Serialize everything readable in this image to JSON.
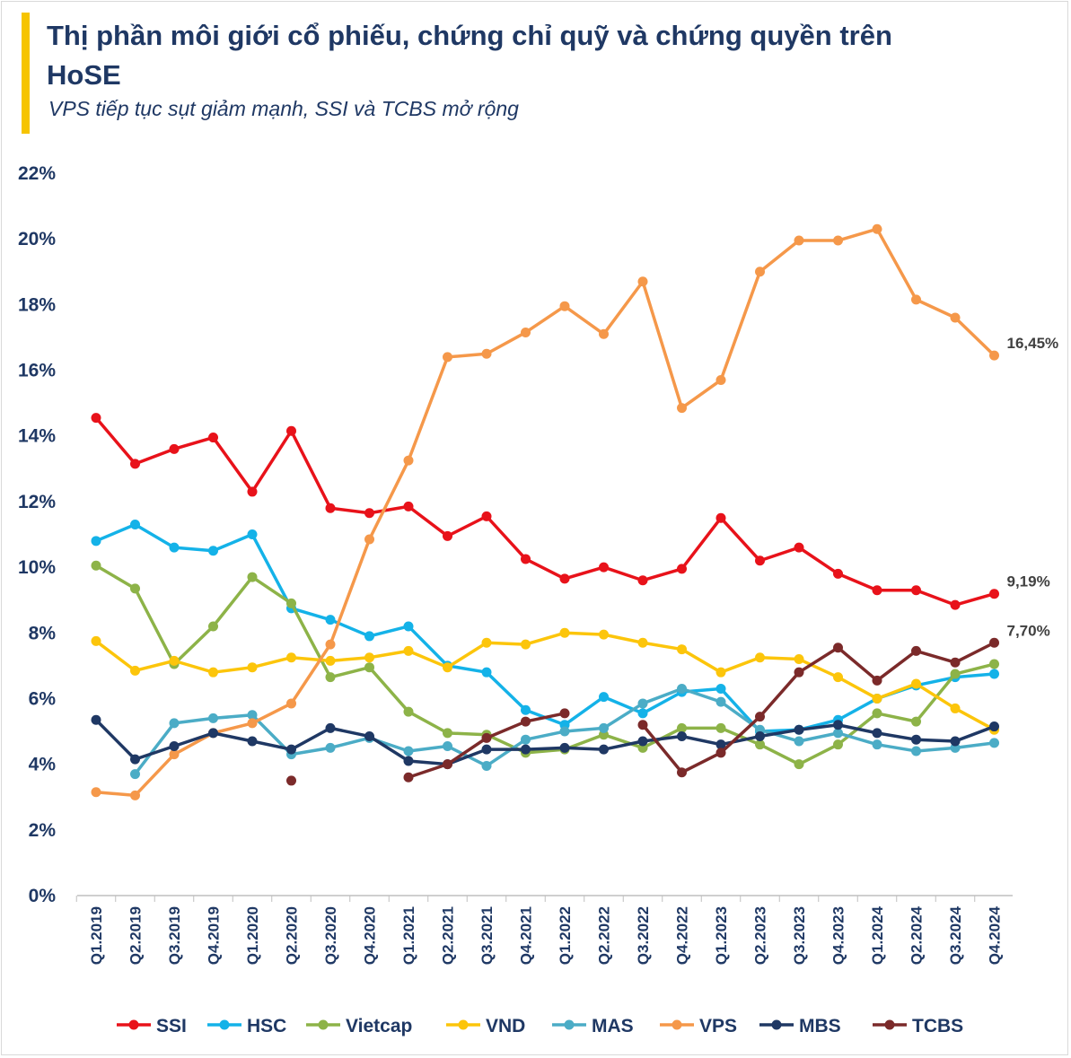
{
  "header": {
    "title": "Thị phần môi giới cổ phiếu, chứng chỉ quỹ và chứng quyền trên HoSE",
    "subtitle": "VPS tiếp tục sụt giảm mạnh, SSI và TCBS mở rộng",
    "accent_color": "#f6c400"
  },
  "chart_data": {
    "type": "line",
    "title": "Thị phần môi giới cổ phiếu, chứng chỉ quỹ và chứng quyền trên HoSE",
    "subtitle": "VPS tiếp tục sụt giảm mạnh, SSI và TCBS mở rộng",
    "xlabel": "",
    "ylabel": "",
    "ylim": [
      0,
      22
    ],
    "y_ticks": [
      "0%",
      "2%",
      "4%",
      "6%",
      "8%",
      "10%",
      "12%",
      "14%",
      "16%",
      "18%",
      "20%",
      "22%"
    ],
    "grid": false,
    "legend_position": "bottom",
    "categories": [
      "Q1.2019",
      "Q2.2019",
      "Q3.2019",
      "Q4.2019",
      "Q1.2020",
      "Q2.2020",
      "Q3.2020",
      "Q4.2020",
      "Q1.2021",
      "Q2.2021",
      "Q3.2021",
      "Q4.2021",
      "Q1.2022",
      "Q2.2022",
      "Q3.2022",
      "Q4.2022",
      "Q1.2023",
      "Q2.2023",
      "Q3.2023",
      "Q4.2023",
      "Q1.2024",
      "Q2.2024",
      "Q3.2024",
      "Q4.2024"
    ],
    "series": [
      {
        "name": "SSI",
        "color": "#e8121a",
        "values": [
          14.55,
          13.15,
          13.6,
          13.95,
          12.3,
          14.15,
          11.8,
          11.65,
          11.85,
          10.95,
          11.55,
          10.25,
          9.65,
          10.0,
          9.6,
          9.95,
          11.5,
          10.2,
          10.6,
          9.8,
          9.3,
          9.3,
          8.85,
          9.19
        ],
        "end_label": "9,19%"
      },
      {
        "name": "HSC",
        "color": "#14b2e8",
        "values": [
          10.8,
          11.3,
          10.6,
          10.5,
          11.0,
          8.75,
          8.4,
          7.9,
          8.2,
          7.0,
          6.8,
          5.65,
          5.2,
          6.05,
          5.55,
          6.2,
          6.3,
          5.0,
          5.05,
          5.35,
          6.0,
          6.4,
          6.65,
          6.75
        ],
        "end_label": ""
      },
      {
        "name": "Vietcap",
        "color": "#8db348",
        "values": [
          10.05,
          9.35,
          7.05,
          8.2,
          9.7,
          8.9,
          6.65,
          6.95,
          5.6,
          4.95,
          4.9,
          4.35,
          4.45,
          4.9,
          4.5,
          5.1,
          5.1,
          4.6,
          4.0,
          4.6,
          5.55,
          5.3,
          6.75,
          7.05
        ],
        "end_label": ""
      },
      {
        "name": "VND",
        "color": "#fcc50b",
        "values": [
          7.75,
          6.85,
          7.15,
          6.8,
          6.95,
          7.25,
          7.15,
          7.25,
          7.45,
          6.95,
          7.7,
          7.65,
          8.0,
          7.95,
          7.7,
          7.5,
          6.8,
          7.25,
          7.2,
          6.65,
          6.0,
          6.45,
          5.7,
          5.05
        ],
        "end_label": ""
      },
      {
        "name": "MAS",
        "color": "#4bacc6",
        "values": [
          null,
          3.7,
          5.25,
          5.4,
          5.5,
          4.3,
          4.5,
          4.8,
          4.4,
          4.55,
          3.95,
          4.75,
          5.0,
          5.1,
          5.85,
          6.3,
          5.9,
          5.05,
          4.7,
          4.95,
          4.6,
          4.4,
          4.5,
          4.65
        ],
        "end_label": ""
      },
      {
        "name": "VPS",
        "color": "#f5984a",
        "values": [
          3.15,
          3.05,
          4.3,
          4.95,
          5.25,
          5.85,
          7.65,
          10.85,
          13.25,
          16.4,
          16.5,
          17.15,
          17.95,
          17.1,
          18.7,
          14.85,
          15.7,
          19.0,
          19.95,
          19.95,
          20.3,
          18.15,
          17.6,
          16.45
        ],
        "end_label": "16,45%"
      },
      {
        "name": "MBS",
        "color": "#1f3864",
        "values": [
          5.35,
          4.15,
          4.55,
          4.95,
          4.7,
          4.45,
          5.1,
          4.85,
          4.1,
          4.0,
          4.45,
          4.45,
          4.5,
          4.45,
          4.7,
          4.85,
          4.6,
          4.85,
          5.05,
          5.2,
          4.95,
          4.75,
          4.7,
          5.15
        ],
        "end_label": ""
      },
      {
        "name": "TCBS",
        "color": "#7b2a2a",
        "values": [
          null,
          null,
          null,
          null,
          null,
          3.5,
          null,
          null,
          3.6,
          4.0,
          4.8,
          5.3,
          5.55,
          null,
          5.2,
          3.75,
          4.35,
          5.45,
          6.8,
          7.55,
          6.55,
          7.45,
          7.1,
          7.7
        ],
        "end_label": "7,70%"
      }
    ]
  }
}
